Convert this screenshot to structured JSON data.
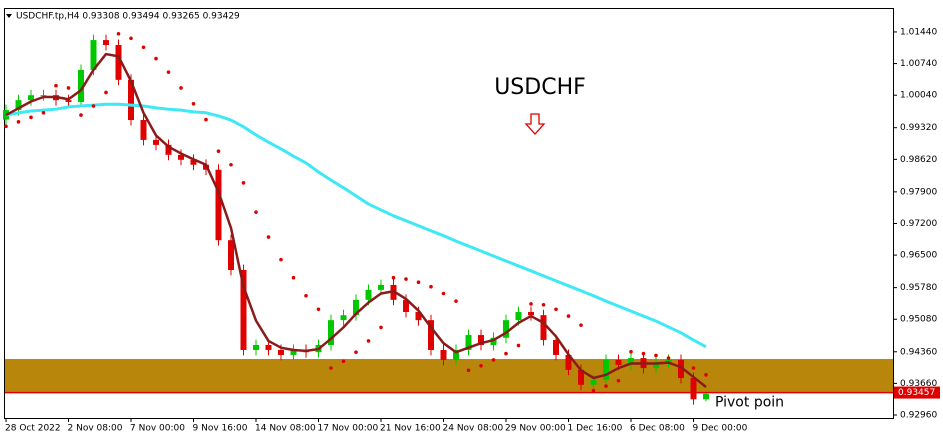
{
  "chart_data": {
    "type": "candlestick",
    "header": "USDCHF.tp,H4 0.93308 0.93494 0.93265 0.93429",
    "annotation": "USDCHF",
    "zone_label": "Pivot poin",
    "categories": [
      "28 Oct 2022",
      null,
      null,
      null,
      null,
      "2 Nov 08:00",
      null,
      null,
      null,
      null,
      "7 Nov 00:00",
      null,
      null,
      null,
      null,
      "9 Nov 16:00",
      null,
      null,
      null,
      null,
      "14 Nov 08:00",
      null,
      null,
      null,
      null,
      "17 Nov 00:00",
      null,
      null,
      null,
      null,
      "21 Nov 16:00",
      null,
      null,
      null,
      null,
      "24 Nov 08:00",
      null,
      null,
      null,
      null,
      "29 Nov 00:00",
      null,
      null,
      null,
      null,
      "1 Dec 16:00",
      null,
      null,
      null,
      null,
      "6 Dec 08:00",
      null,
      null,
      null,
      null,
      "9 Dec 00:00",
      null
    ],
    "open": [
      0.995,
      0.9971,
      0.9993,
      1.0004,
      1.0004,
      0.9993,
      0.9989,
      1.006,
      1.0126,
      1.0115,
      1.0038,
      0.9949,
      0.9905,
      0.9894,
      0.9872,
      0.9861,
      0.985,
      0.9839,
      0.9683,
      0.9617,
      0.944,
      0.9451,
      0.944,
      0.9429,
      0.944,
      0.9435,
      0.9451,
      0.9506,
      0.9517,
      0.9551,
      0.9573,
      0.9584,
      0.9551,
      0.9524,
      0.9506,
      0.944,
      0.9418,
      0.944,
      0.9473,
      0.9451,
      0.9467,
      0.9506,
      0.9524,
      0.9517,
      0.9462,
      0.9429,
      0.9396,
      0.9363,
      0.9374,
      0.9418,
      0.9407,
      0.9422,
      0.94,
      0.9413,
      0.9418,
      0.9378,
      0.93308
    ],
    "high": [
      0.9983,
      1.0005,
      1.0016,
      1.0016,
      1.0016,
      1.0005,
      1.0072,
      1.0138,
      1.0138,
      1.0127,
      1.005,
      0.9961,
      0.9917,
      0.9906,
      0.9884,
      0.9873,
      0.9862,
      0.9851,
      0.9695,
      0.9629,
      0.9463,
      0.9463,
      0.9452,
      0.9452,
      0.9452,
      0.9463,
      0.9518,
      0.9529,
      0.9563,
      0.9585,
      0.9596,
      0.9596,
      0.9563,
      0.9536,
      0.9518,
      0.9452,
      0.9452,
      0.9485,
      0.9485,
      0.9479,
      0.9518,
      0.9536,
      0.9536,
      0.9529,
      0.9474,
      0.9441,
      0.9408,
      0.9386,
      0.943,
      0.943,
      0.9434,
      0.9434,
      0.9425,
      0.943,
      0.943,
      0.939,
      0.93494
    ],
    "low": [
      0.9938,
      0.9959,
      0.9981,
      0.9992,
      0.9981,
      0.9977,
      0.9977,
      1.0048,
      1.0103,
      1.0026,
      0.9937,
      0.9893,
      0.9882,
      0.986,
      0.9849,
      0.9838,
      0.9827,
      0.9671,
      0.9605,
      0.9428,
      0.9428,
      0.9428,
      0.9417,
      0.9417,
      0.9423,
      0.9423,
      0.9439,
      0.9494,
      0.9505,
      0.9539,
      0.9561,
      0.9539,
      0.9512,
      0.9494,
      0.9428,
      0.9406,
      0.9406,
      0.9428,
      0.9439,
      0.9439,
      0.9455,
      0.9494,
      0.9505,
      0.945,
      0.9417,
      0.9384,
      0.9351,
      0.9351,
      0.9362,
      0.9395,
      0.9395,
      0.9388,
      0.9388,
      0.9401,
      0.9366,
      0.9319,
      0.93265
    ],
    "close": [
      0.9971,
      0.9993,
      1.0004,
      1.0004,
      0.9993,
      0.9989,
      1.006,
      1.0126,
      1.0115,
      1.0038,
      0.9949,
      0.9905,
      0.9894,
      0.9872,
      0.9861,
      0.985,
      0.9839,
      0.9683,
      0.9617,
      0.944,
      0.9451,
      0.944,
      0.9429,
      0.944,
      0.9435,
      0.9451,
      0.9506,
      0.9517,
      0.9551,
      0.9573,
      0.9584,
      0.9551,
      0.9524,
      0.9506,
      0.944,
      0.9418,
      0.944,
      0.9473,
      0.9451,
      0.9467,
      0.9506,
      0.9524,
      0.9517,
      0.9462,
      0.9429,
      0.9396,
      0.9363,
      0.9374,
      0.9418,
      0.9407,
      0.9422,
      0.94,
      0.9413,
      0.9418,
      0.9378,
      0.93308,
      0.93429
    ],
    "up_color": "#00c800",
    "down_color": "#e00000",
    "lines": [
      {
        "color": "#3ee8f4",
        "width": 3,
        "values": [
          0.996,
          0.9965,
          0.9969,
          0.9971,
          0.9973,
          0.9978,
          0.998,
          0.9982,
          0.9984,
          0.9984,
          0.9982,
          0.998,
          0.9976,
          0.9973,
          0.9971,
          0.9967,
          0.9965,
          0.9958,
          0.9949,
          0.9934,
          0.9916,
          0.99,
          0.9885,
          0.9869,
          0.9854,
          0.9834,
          0.9816,
          0.9799,
          0.9781,
          0.9763,
          0.975,
          0.9737,
          0.9726,
          0.9715,
          0.9704,
          0.9693,
          0.9681,
          0.967,
          0.9659,
          0.9648,
          0.9637,
          0.9626,
          0.9615,
          0.9604,
          0.9593,
          0.9582,
          0.9571,
          0.956,
          0.9548,
          0.9537,
          0.9526,
          0.9515,
          0.9504,
          0.9491,
          0.9478,
          0.9462,
          0.9447
        ]
      },
      {
        "color": "#8b1a1a",
        "width": 2.5,
        "values": [
          0.996,
          0.9975,
          0.999,
          1.0,
          1.0,
          0.9995,
          1.0015,
          1.006,
          1.0095,
          1.009,
          1.0035,
          0.9965,
          0.9915,
          0.989,
          0.9875,
          0.9862,
          0.985,
          0.979,
          0.971,
          0.958,
          0.9505,
          0.946,
          0.9445,
          0.944,
          0.9438,
          0.9442,
          0.9465,
          0.949,
          0.952,
          0.9545,
          0.9565,
          0.957,
          0.9553,
          0.9527,
          0.949,
          0.9455,
          0.9435,
          0.9445,
          0.9455,
          0.9462,
          0.9478,
          0.95,
          0.9515,
          0.95,
          0.947,
          0.943,
          0.9395,
          0.9378,
          0.9385,
          0.94,
          0.941,
          0.941,
          0.941,
          0.9412,
          0.9402,
          0.938,
          0.9358
        ]
      }
    ],
    "sar": {
      "color": "#e00000",
      "values": [
        0.9935,
        0.9945,
        0.9955,
        0.9965,
        1.0025,
        1.002,
        0.996,
        0.998,
        1.001,
        1.014,
        1.013,
        1.011,
        1.0085,
        1.0055,
        1.002,
        0.9985,
        0.995,
        0.988,
        0.985,
        0.981,
        0.9745,
        0.969,
        0.964,
        0.96,
        0.956,
        0.953,
        0.94,
        0.9415,
        0.9435,
        0.946,
        0.949,
        0.96,
        0.9597,
        0.959,
        0.958,
        0.9565,
        0.9548,
        0.9395,
        0.9405,
        0.9418,
        0.9432,
        0.945,
        0.9542,
        0.954,
        0.953,
        0.9515,
        0.9495,
        0.935,
        0.936,
        0.9372,
        0.9436,
        0.9432,
        0.9428,
        0.9422,
        0.9414,
        0.94,
        0.9385
      ]
    },
    "zone": {
      "color": "#b8860b",
      "range": [
        0.9346,
        0.942
      ]
    },
    "price_line": {
      "value": 0.93457,
      "label": "0.93457",
      "color": "#e00000"
    },
    "ylim": [
      0.92894,
      1.0197
    ],
    "yticks": [
      {
        "value": 1.0144,
        "label": "1.01440"
      },
      {
        "value": 1.0074,
        "label": "1.00740"
      },
      {
        "value": 1.0004,
        "label": "1.00040"
      },
      {
        "value": 0.9932,
        "label": "0.99320"
      },
      {
        "value": 0.9862,
        "label": "0.98620"
      },
      {
        "value": 0.979,
        "label": "0.97900"
      },
      {
        "value": 0.972,
        "label": "0.97200"
      },
      {
        "value": 0.965,
        "label": "0.96500"
      },
      {
        "value": 0.9578,
        "label": "0.95780"
      },
      {
        "value": 0.9508,
        "label": "0.95080"
      },
      {
        "value": 0.9436,
        "label": "0.94360"
      },
      {
        "value": 0.9366,
        "label": "0.93660"
      },
      {
        "value": 0.9296,
        "label": "0.92960"
      }
    ]
  }
}
